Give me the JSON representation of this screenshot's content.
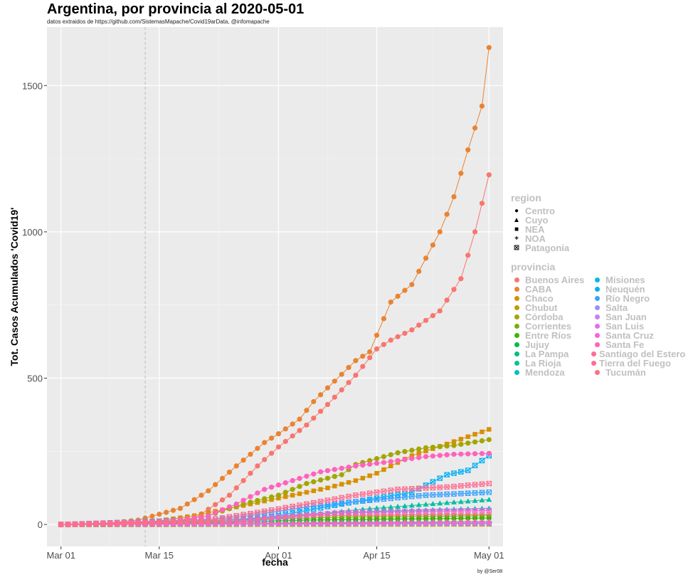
{
  "title": "Argentina, por provincia al 2020-05-01",
  "subtitle": "datos extraidos de https://github.com/SistemasMapache/Covid19arData, @infomapache",
  "caption": "by @Ser08",
  "chart_data": {
    "type": "line",
    "xlabel": "fecha",
    "ylabel": "Tot. Casos Acumulados 'Covid19'",
    "x_start": "2020-03-01",
    "x_end": "2020-05-01",
    "xlim": [
      "2020-02-28",
      "2020-05-03"
    ],
    "ylim": [
      -75,
      1700
    ],
    "x_ticks": [
      {
        "date": "2020-03-01",
        "label": "Mar 01"
      },
      {
        "date": "2020-03-15",
        "label": "Mar 15"
      },
      {
        "date": "2020-04-01",
        "label": "Apr 01"
      },
      {
        "date": "2020-04-15",
        "label": "Apr 15"
      },
      {
        "date": "2020-05-01",
        "label": "May 01"
      }
    ],
    "y_ticks": [
      0,
      500,
      1000,
      1500
    ],
    "vline_date": "2020-03-13",
    "grid": true,
    "panel_bg": "#ebebeb",
    "legend_position": "right",
    "series": [
      {
        "name": "Buenos Aires",
        "region": "Centro",
        "color": "#F8766D",
        "points": [
          [
            "2020-03-01",
            0
          ],
          [
            "2020-03-10",
            0
          ],
          [
            "2020-03-16",
            5
          ],
          [
            "2020-03-20",
            20
          ],
          [
            "2020-03-25",
            100
          ],
          [
            "2020-03-29",
            200
          ],
          [
            "2020-04-01",
            265
          ],
          [
            "2020-04-05",
            340
          ],
          [
            "2020-04-08",
            410
          ],
          [
            "2020-04-12",
            510
          ],
          [
            "2020-04-15",
            600
          ],
          [
            "2020-04-17",
            630
          ],
          [
            "2020-04-20",
            665
          ],
          [
            "2020-04-24",
            730
          ],
          [
            "2020-04-27",
            840
          ],
          [
            "2020-04-29",
            1000
          ],
          [
            "2020-05-01",
            1195
          ]
        ]
      },
      {
        "name": "CABA",
        "region": "Centro",
        "color": "#EA8331",
        "points": [
          [
            "2020-03-01",
            0
          ],
          [
            "2020-03-05",
            3
          ],
          [
            "2020-03-08",
            5
          ],
          [
            "2020-03-12",
            15
          ],
          [
            "2020-03-15",
            35
          ],
          [
            "2020-03-18",
            55
          ],
          [
            "2020-03-22",
            115
          ],
          [
            "2020-03-26",
            200
          ],
          [
            "2020-03-30",
            280
          ],
          [
            "2020-04-01",
            310
          ],
          [
            "2020-04-04",
            360
          ],
          [
            "2020-04-06",
            420
          ],
          [
            "2020-04-09",
            490
          ],
          [
            "2020-04-12",
            560
          ],
          [
            "2020-04-14",
            590
          ],
          [
            "2020-04-17",
            760
          ],
          [
            "2020-04-20",
            820
          ],
          [
            "2020-04-24",
            1000
          ],
          [
            "2020-04-26",
            1120
          ],
          [
            "2020-04-28",
            1280
          ],
          [
            "2020-04-30",
            1430
          ],
          [
            "2020-05-01",
            1630
          ]
        ]
      },
      {
        "name": "Chaco",
        "region": "NEA",
        "color": "#D89000",
        "points": [
          [
            "2020-03-01",
            0
          ],
          [
            "2020-03-12",
            2
          ],
          [
            "2020-03-20",
            30
          ],
          [
            "2020-03-25",
            55
          ],
          [
            "2020-03-30",
            80
          ],
          [
            "2020-04-03",
            100
          ],
          [
            "2020-04-08",
            125
          ],
          [
            "2020-04-12",
            150
          ],
          [
            "2020-04-15",
            175
          ],
          [
            "2020-04-17",
            200
          ],
          [
            "2020-04-20",
            235
          ],
          [
            "2020-04-25",
            275
          ],
          [
            "2020-04-28",
            300
          ],
          [
            "2020-05-01",
            325
          ]
        ]
      },
      {
        "name": "Chubut",
        "region": "Patagonia",
        "color": "#C09B00",
        "points": [
          [
            "2020-03-01",
            0
          ],
          [
            "2020-05-01",
            2
          ]
        ]
      },
      {
        "name": "Córdoba",
        "region": "Centro",
        "color": "#A3A500",
        "points": [
          [
            "2020-03-01",
            0
          ],
          [
            "2020-03-12",
            3
          ],
          [
            "2020-03-18",
            15
          ],
          [
            "2020-03-22",
            30
          ],
          [
            "2020-03-27",
            70
          ],
          [
            "2020-04-01",
            100
          ],
          [
            "2020-04-05",
            140
          ],
          [
            "2020-04-10",
            170
          ],
          [
            "2020-04-12",
            205
          ],
          [
            "2020-04-15",
            225
          ],
          [
            "2020-04-18",
            245
          ],
          [
            "2020-04-22",
            262
          ],
          [
            "2020-04-26",
            270
          ],
          [
            "2020-05-01",
            290
          ]
        ]
      },
      {
        "name": "Corrientes",
        "region": "NEA",
        "color": "#7CAE00",
        "points": [
          [
            "2020-03-01",
            0
          ],
          [
            "2020-03-25",
            15
          ],
          [
            "2020-04-10",
            25
          ],
          [
            "2020-05-01",
            30
          ]
        ]
      },
      {
        "name": "Entre Ríos",
        "region": "Centro",
        "color": "#39B600",
        "points": [
          [
            "2020-03-01",
            0
          ],
          [
            "2020-03-20",
            5
          ],
          [
            "2020-04-05",
            15
          ],
          [
            "2020-05-01",
            22
          ]
        ]
      },
      {
        "name": "Jujuy",
        "region": "NOA",
        "color": "#00BB4E",
        "points": [
          [
            "2020-03-01",
            0
          ],
          [
            "2020-03-25",
            3
          ],
          [
            "2020-05-01",
            5
          ]
        ]
      },
      {
        "name": "La Pampa",
        "region": "Centro",
        "color": "#00BF7D",
        "points": [
          [
            "2020-03-01",
            0
          ],
          [
            "2020-04-01",
            3
          ],
          [
            "2020-05-01",
            5
          ]
        ]
      },
      {
        "name": "La Rioja",
        "region": "Cuyo",
        "color": "#00C1A3",
        "points": [
          [
            "2020-03-01",
            0
          ],
          [
            "2020-03-25",
            5
          ],
          [
            "2020-04-05",
            30
          ],
          [
            "2020-04-12",
            50
          ],
          [
            "2020-04-20",
            65
          ],
          [
            "2020-05-01",
            85
          ]
        ]
      },
      {
        "name": "Mendoza",
        "region": "Cuyo",
        "color": "#00BFC4",
        "points": [
          [
            "2020-03-01",
            0
          ],
          [
            "2020-03-22",
            10
          ],
          [
            "2020-04-05",
            35
          ],
          [
            "2020-04-15",
            45
          ],
          [
            "2020-05-01",
            55
          ]
        ]
      },
      {
        "name": "Misiones",
        "region": "NEA",
        "color": "#00BAE0",
        "points": [
          [
            "2020-03-01",
            0
          ],
          [
            "2020-04-01",
            3
          ],
          [
            "2020-05-01",
            5
          ]
        ]
      },
      {
        "name": "Neuquén",
        "region": "Patagonia",
        "color": "#00B0F6",
        "points": [
          [
            "2020-03-01",
            0
          ],
          [
            "2020-03-25",
            10
          ],
          [
            "2020-04-01",
            30
          ],
          [
            "2020-04-10",
            70
          ],
          [
            "2020-04-20",
            110
          ],
          [
            "2020-04-25",
            170
          ],
          [
            "2020-04-28",
            185
          ],
          [
            "2020-05-01",
            235
          ]
        ]
      },
      {
        "name": "Río Negro",
        "region": "Patagonia",
        "color": "#35A2FF",
        "points": [
          [
            "2020-03-01",
            0
          ],
          [
            "2020-03-25",
            20
          ],
          [
            "2020-04-05",
            60
          ],
          [
            "2020-04-15",
            85
          ],
          [
            "2020-04-22",
            100
          ],
          [
            "2020-05-01",
            110
          ]
        ]
      },
      {
        "name": "Salta",
        "region": "NOA",
        "color": "#9590FF",
        "points": [
          [
            "2020-03-01",
            0
          ],
          [
            "2020-04-01",
            3
          ],
          [
            "2020-05-01",
            5
          ]
        ]
      },
      {
        "name": "San Juan",
        "region": "Cuyo",
        "color": "#C77CFF",
        "points": [
          [
            "2020-03-01",
            0
          ],
          [
            "2020-04-01",
            2
          ],
          [
            "2020-05-01",
            3
          ]
        ]
      },
      {
        "name": "San Luis",
        "region": "Cuyo",
        "color": "#E76BF3",
        "points": [
          [
            "2020-03-01",
            0
          ],
          [
            "2020-04-01",
            5
          ],
          [
            "2020-05-01",
            10
          ]
        ]
      },
      {
        "name": "Santa Cruz",
        "region": "Patagonia",
        "color": "#FA62DB",
        "points": [
          [
            "2020-03-01",
            0
          ],
          [
            "2020-03-25",
            10
          ],
          [
            "2020-04-01",
            25
          ],
          [
            "2020-04-10",
            40
          ],
          [
            "2020-05-01",
            48
          ]
        ]
      },
      {
        "name": "Santa Fe",
        "region": "Centro",
        "color": "#FF62BC",
        "points": [
          [
            "2020-03-01",
            0
          ],
          [
            "2020-03-15",
            5
          ],
          [
            "2020-03-22",
            30
          ],
          [
            "2020-03-26",
            70
          ],
          [
            "2020-03-30",
            120
          ],
          [
            "2020-04-03",
            150
          ],
          [
            "2020-04-07",
            180
          ],
          [
            "2020-04-12",
            200
          ],
          [
            "2020-04-17",
            215
          ],
          [
            "2020-04-22",
            232
          ],
          [
            "2020-04-26",
            240
          ],
          [
            "2020-05-01",
            243
          ]
        ]
      },
      {
        "name": "Santiago del Estero",
        "region": "NOA",
        "color": "#FF6A98",
        "points": [
          [
            "2020-03-01",
            0
          ],
          [
            "2020-04-01",
            5
          ],
          [
            "2020-05-01",
            10
          ]
        ]
      },
      {
        "name": "Tierra del Fuego",
        "region": "Patagonia",
        "color": "#FF6C91",
        "points": [
          [
            "2020-03-01",
            0
          ],
          [
            "2020-03-22",
            15
          ],
          [
            "2020-03-30",
            45
          ],
          [
            "2020-04-05",
            70
          ],
          [
            "2020-04-12",
            100
          ],
          [
            "2020-04-18",
            120
          ],
          [
            "2020-04-25",
            128
          ],
          [
            "2020-05-01",
            140
          ]
        ]
      },
      {
        "name": "Tucumán",
        "region": "NOA",
        "color": "#FC717F",
        "points": [
          [
            "2020-03-01",
            0
          ],
          [
            "2020-03-25",
            10
          ],
          [
            "2020-04-05",
            30
          ],
          [
            "2020-05-01",
            35
          ]
        ]
      }
    ]
  },
  "legend": {
    "region_title": "region",
    "regions": [
      {
        "label": "Centro",
        "symbol": "●"
      },
      {
        "label": "Cuyo",
        "symbol": "▲"
      },
      {
        "label": "NEA",
        "symbol": "■"
      },
      {
        "label": "NOA",
        "symbol": "+"
      },
      {
        "label": "Patagonia",
        "symbol": "⊠"
      }
    ],
    "provincia_title": "provincia"
  }
}
